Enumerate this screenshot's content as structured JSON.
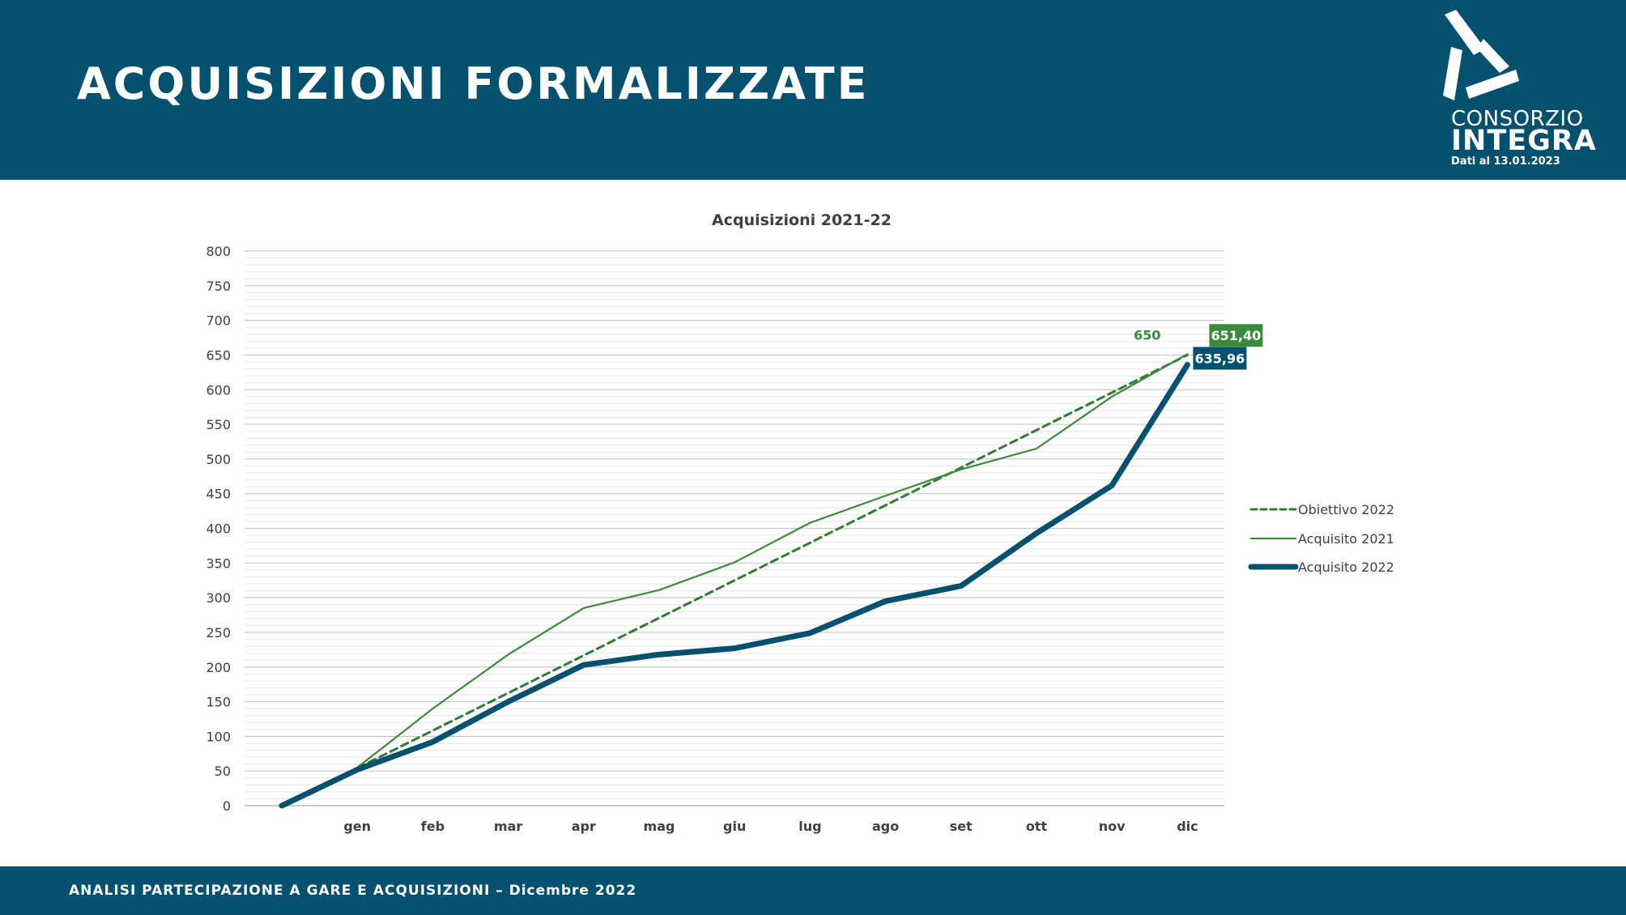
{
  "header": {
    "title": "ACQUISIZIONI FORMALIZZATE",
    "logo_line1": "CONSORZIO",
    "logo_line2": "INTEGRA",
    "date_note": "Dati al 13.01.2023"
  },
  "footer": {
    "text": "ANALISI PARTECIPAZIONE A GARE E ACQUISIZIONI – Dicembre 2022"
  },
  "chart_data": {
    "type": "line",
    "title": "Acquisizioni 2021-22",
    "xlabel": "",
    "ylabel": "",
    "ylim": [
      0,
      800
    ],
    "yticks": [
      0,
      50,
      100,
      150,
      200,
      250,
      300,
      350,
      400,
      450,
      500,
      550,
      600,
      650,
      700,
      750,
      800
    ],
    "grid": true,
    "legend": "right",
    "categories": [
      "",
      "gen",
      "feb",
      "mar",
      "apr",
      "mag",
      "giu",
      "lug",
      "ago",
      "set",
      "ott",
      "nov",
      "dic"
    ],
    "tick_labels": [
      "gen",
      "feb",
      "mar",
      "apr",
      "mag",
      "giu",
      "lug",
      "ago",
      "set",
      "ott",
      "nov",
      "dic"
    ],
    "series": [
      {
        "name": "Obiettivo 2022",
        "color": "#2e7d32",
        "style": "dashed",
        "values": [
          0,
          54.2,
          108.3,
          162.5,
          216.7,
          270.8,
          325,
          379.2,
          433.3,
          487.5,
          541.7,
          595.8,
          650
        ]
      },
      {
        "name": "Acquisito 2021",
        "color": "#3b8a3b",
        "style": "thin",
        "values": [
          0,
          55,
          140,
          218,
          285,
          311,
          351,
          408,
          447,
          485,
          515,
          590,
          651.4
        ]
      },
      {
        "name": "Acquisito 2022",
        "color": "#03506f",
        "style": "thick",
        "values": [
          0,
          52,
          92,
          150,
          203,
          218,
          227,
          249,
          295,
          317,
          393,
          462,
          635.96
        ]
      }
    ],
    "annotations": [
      {
        "text": "650",
        "series": 0
      },
      {
        "text": "651,40",
        "series": 1
      },
      {
        "text": "635,96",
        "series": 2
      }
    ]
  }
}
